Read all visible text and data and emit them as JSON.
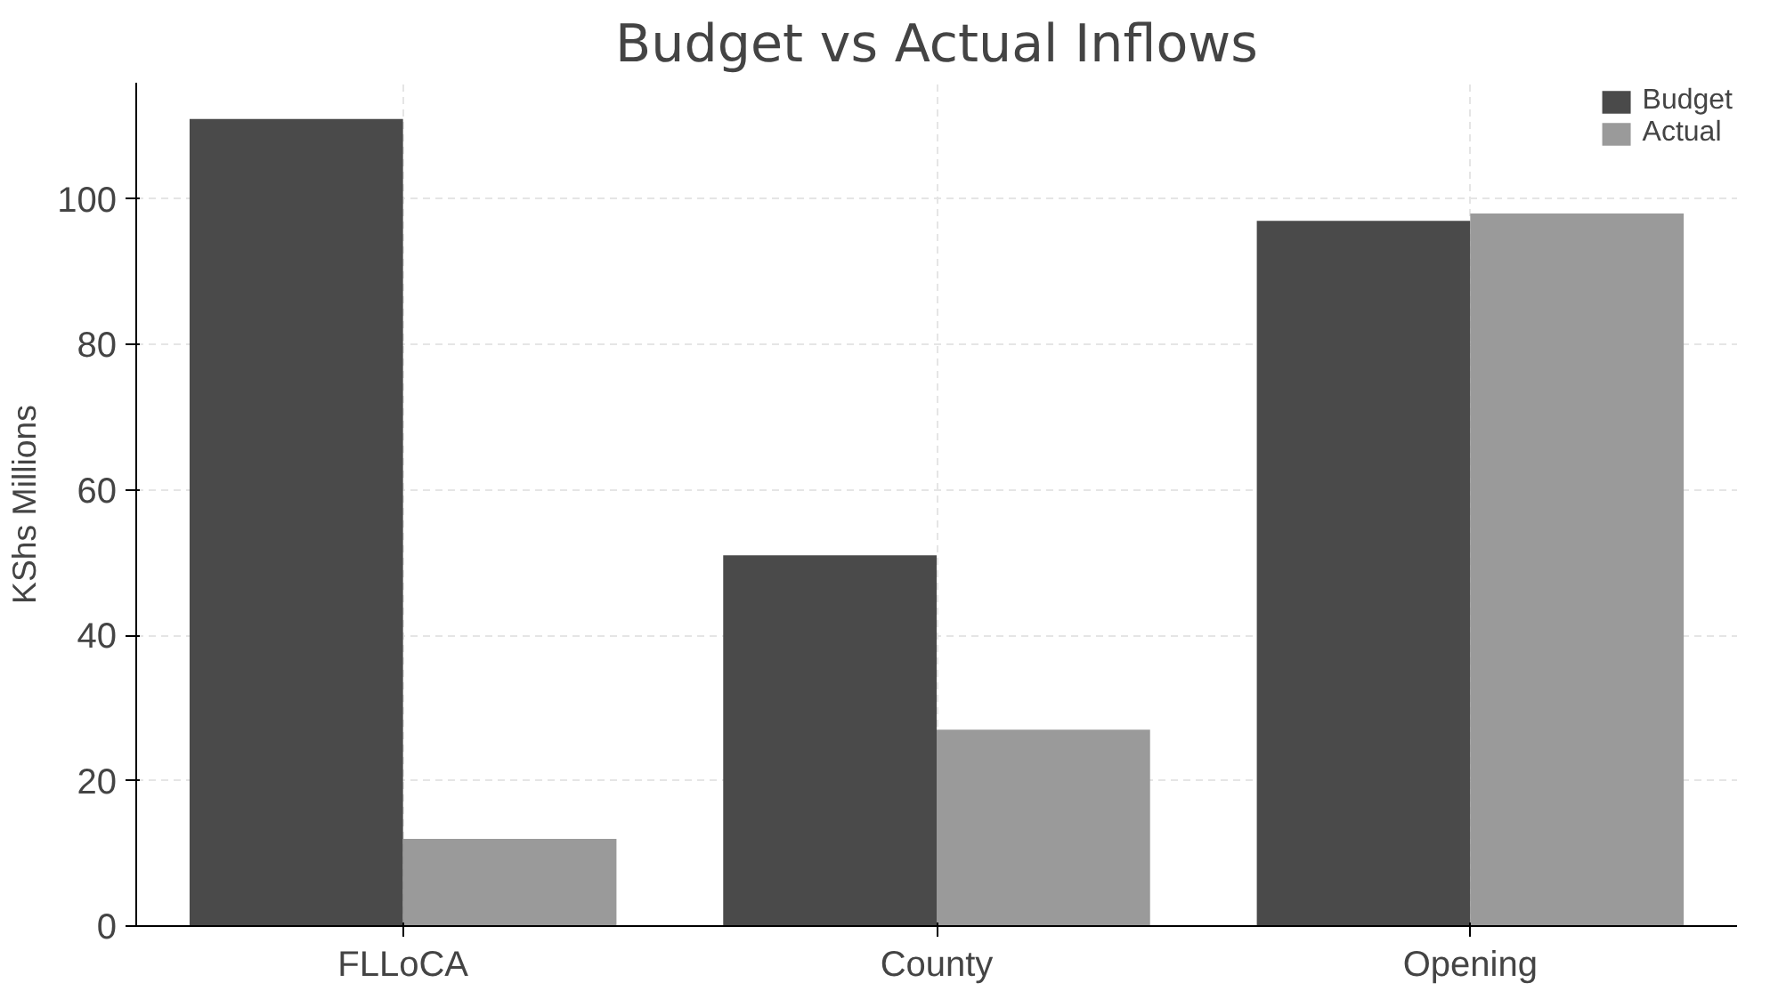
{
  "chart_data": {
    "type": "bar",
    "title": "Budget vs Actual Inflows",
    "ylabel": "KShs Millions",
    "categories": [
      "FLLoCA",
      "County",
      "Opening"
    ],
    "series": [
      {
        "name": "Budget",
        "color": "#4a4a4a",
        "values": [
          111,
          51,
          97
        ]
      },
      {
        "name": "Actual",
        "color": "#9a9a9a",
        "values": [
          12,
          27,
          98
        ]
      }
    ],
    "ylim": [
      0,
      116
    ],
    "yticks": [
      0,
      20,
      40,
      60,
      80,
      100
    ],
    "grid": true,
    "legend": "top right"
  }
}
